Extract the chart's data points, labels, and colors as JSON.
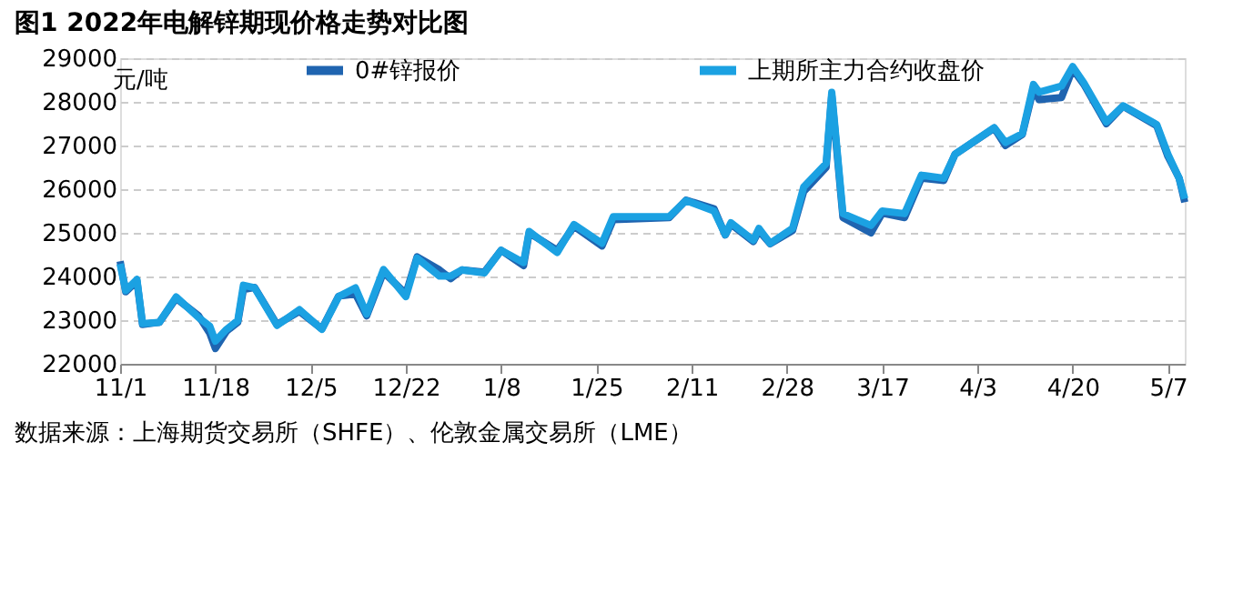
{
  "chart_data": {
    "type": "line",
    "title": "图1 2022年电解锌期现价格走势对比图",
    "ylabel": "元/吨",
    "x": [
      "2021-11-01",
      "2021-11-02",
      "2021-11-04",
      "2021-11-05",
      "2021-11-08",
      "2021-11-11",
      "2021-11-15",
      "2021-11-17",
      "2021-11-18",
      "2021-11-20",
      "2021-11-22",
      "2021-11-23",
      "2021-11-25",
      "2021-11-29",
      "2021-12-03",
      "2021-12-07",
      "2021-12-10",
      "2021-12-13",
      "2021-12-15",
      "2021-12-18",
      "2021-12-22",
      "2021-12-24",
      "2021-12-28",
      "2021-12-30",
      "2022-01-01",
      "2022-01-05",
      "2022-01-08",
      "2022-01-12",
      "2022-01-13",
      "2022-01-18",
      "2022-01-21",
      "2022-01-26",
      "2022-01-28",
      "2022-02-07",
      "2022-02-10",
      "2022-02-15",
      "2022-02-17",
      "2022-02-18",
      "2022-02-22",
      "2022-02-23",
      "2022-02-25",
      "2022-03-01",
      "2022-03-03",
      "2022-03-07",
      "2022-03-08",
      "2022-03-10",
      "2022-03-15",
      "2022-03-17",
      "2022-03-21",
      "2022-03-24",
      "2022-03-28",
      "2022-03-30",
      "2022-04-06",
      "2022-04-08",
      "2022-04-11",
      "2022-04-13",
      "2022-04-14",
      "2022-04-18",
      "2022-04-20",
      "2022-04-22",
      "2022-04-26",
      "2022-04-29",
      "2022-05-05",
      "2022-05-07",
      "2022-05-09",
      "2022-05-10"
    ],
    "series": [
      {
        "name": "0#锌报价",
        "color": "#1f64b0",
        "values": [
          24350,
          23650,
          23900,
          22900,
          22950,
          23500,
          23100,
          22700,
          22350,
          22750,
          22950,
          23700,
          23750,
          22900,
          23200,
          22800,
          23550,
          23600,
          23100,
          24100,
          23600,
          24450,
          24150,
          23950,
          24150,
          24100,
          24600,
          24250,
          25000,
          24600,
          25150,
          24700,
          25300,
          25350,
          25750,
          25550,
          24950,
          25200,
          24800,
          25050,
          24750,
          25050,
          25950,
          26500,
          28150,
          25350,
          25000,
          25450,
          25350,
          26250,
          26200,
          26800,
          27400,
          27000,
          27250,
          28300,
          28050,
          28100,
          28750,
          28400,
          27500,
          27900,
          27450,
          26750,
          26250,
          25700
        ]
      },
      {
        "name": "上期所主力合约收盘价",
        "color": "#1ba1e2",
        "values": [
          24290,
          23680,
          23930,
          22920,
          22950,
          23530,
          23060,
          22860,
          22520,
          22790,
          22990,
          23800,
          23740,
          22880,
          23240,
          22790,
          23540,
          23740,
          23140,
          24160,
          23540,
          24420,
          24010,
          24010,
          24150,
          24080,
          24600,
          24320,
          25030,
          24550,
          25190,
          24760,
          25370,
          25370,
          25740,
          25500,
          24960,
          25230,
          24830,
          25100,
          24760,
          25100,
          26050,
          26590,
          28220,
          25440,
          25170,
          25500,
          25440,
          26320,
          26250,
          26800,
          27410,
          27070,
          27270,
          28400,
          28220,
          28360,
          28810,
          28430,
          27540,
          27910,
          27480,
          26800,
          26250,
          25780
        ]
      }
    ],
    "xlim": [
      "2021-11-01",
      "2022-05-10"
    ],
    "xticks": [
      {
        "value": "2021-11-01",
        "label": "11/1"
      },
      {
        "value": "2021-11-18",
        "label": "11/18"
      },
      {
        "value": "2021-12-05",
        "label": "12/5"
      },
      {
        "value": "2021-12-22",
        "label": "12/22"
      },
      {
        "value": "2022-01-08",
        "label": "1/8"
      },
      {
        "value": "2022-01-25",
        "label": "1/25"
      },
      {
        "value": "2022-02-11",
        "label": "2/11"
      },
      {
        "value": "2022-02-28",
        "label": "2/28"
      },
      {
        "value": "2022-03-17",
        "label": "3/17"
      },
      {
        "value": "2022-04-03",
        "label": "4/3"
      },
      {
        "value": "2022-04-20",
        "label": "4/20"
      },
      {
        "value": "2022-05-07",
        "label": "5/7"
      }
    ],
    "ylim": [
      22000,
      29000
    ],
    "yticks": [
      22000,
      23000,
      24000,
      25000,
      26000,
      27000,
      28000,
      29000
    ],
    "grid": "y",
    "legend": "top",
    "marker": "none",
    "line_style": "solid",
    "annotations": [
      "数据来源：上海期货交易所（SHFE）、伦敦金属交易所（LME）"
    ]
  }
}
